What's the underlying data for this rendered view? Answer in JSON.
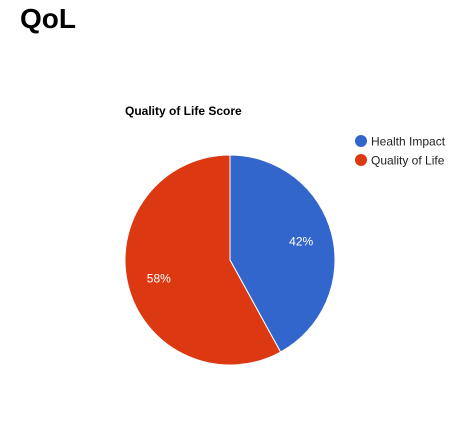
{
  "page": {
    "title": "QoL"
  },
  "chart_data": {
    "type": "pie",
    "title": "Quality of Life Score",
    "categories": [
      "Health Impact",
      "Quality of Life"
    ],
    "values": [
      42,
      58
    ],
    "labels": [
      "42%",
      "58%"
    ],
    "colors": [
      "#3366cc",
      "#dc3912"
    ],
    "legend": {
      "position": "right",
      "entries": [
        "Health Impact",
        "Quality of Life"
      ]
    }
  }
}
